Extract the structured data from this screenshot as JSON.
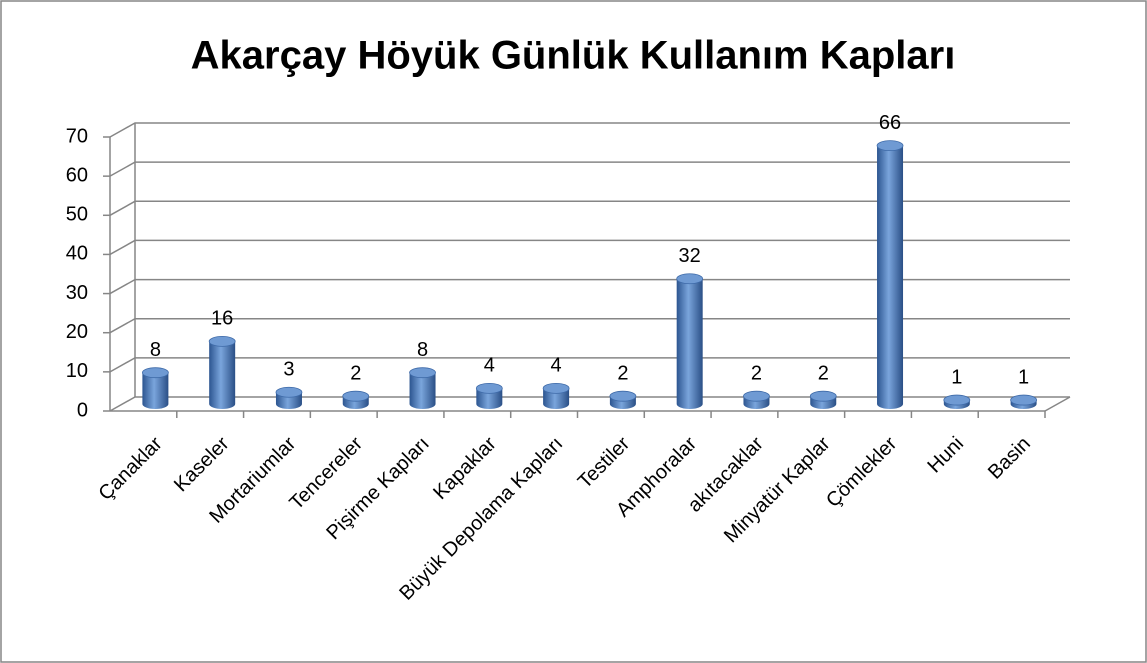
{
  "chart_data": {
    "type": "bar3d",
    "title": "Akarçay Höyük Günlük Kullanım Kapları",
    "categories": [
      "Çanaklar",
      "Kaseler",
      "Mortariumlar",
      "Tencereler",
      "Pişirme Kapları",
      "Kapaklar",
      "Büyük Depolama Kapları",
      "Testiler",
      "Amphoralar",
      "akıtacaklar",
      "Minyatür Kaplar",
      "Çömlekler",
      "Huni",
      "Basin"
    ],
    "values": [
      8,
      16,
      3,
      2,
      8,
      4,
      4,
      2,
      32,
      2,
      2,
      66,
      1,
      1
    ],
    "color": "#4f81bd",
    "ylim": [
      0,
      70
    ],
    "yticks": [
      0,
      10,
      20,
      30,
      40,
      50,
      60,
      70
    ],
    "grid": true
  }
}
